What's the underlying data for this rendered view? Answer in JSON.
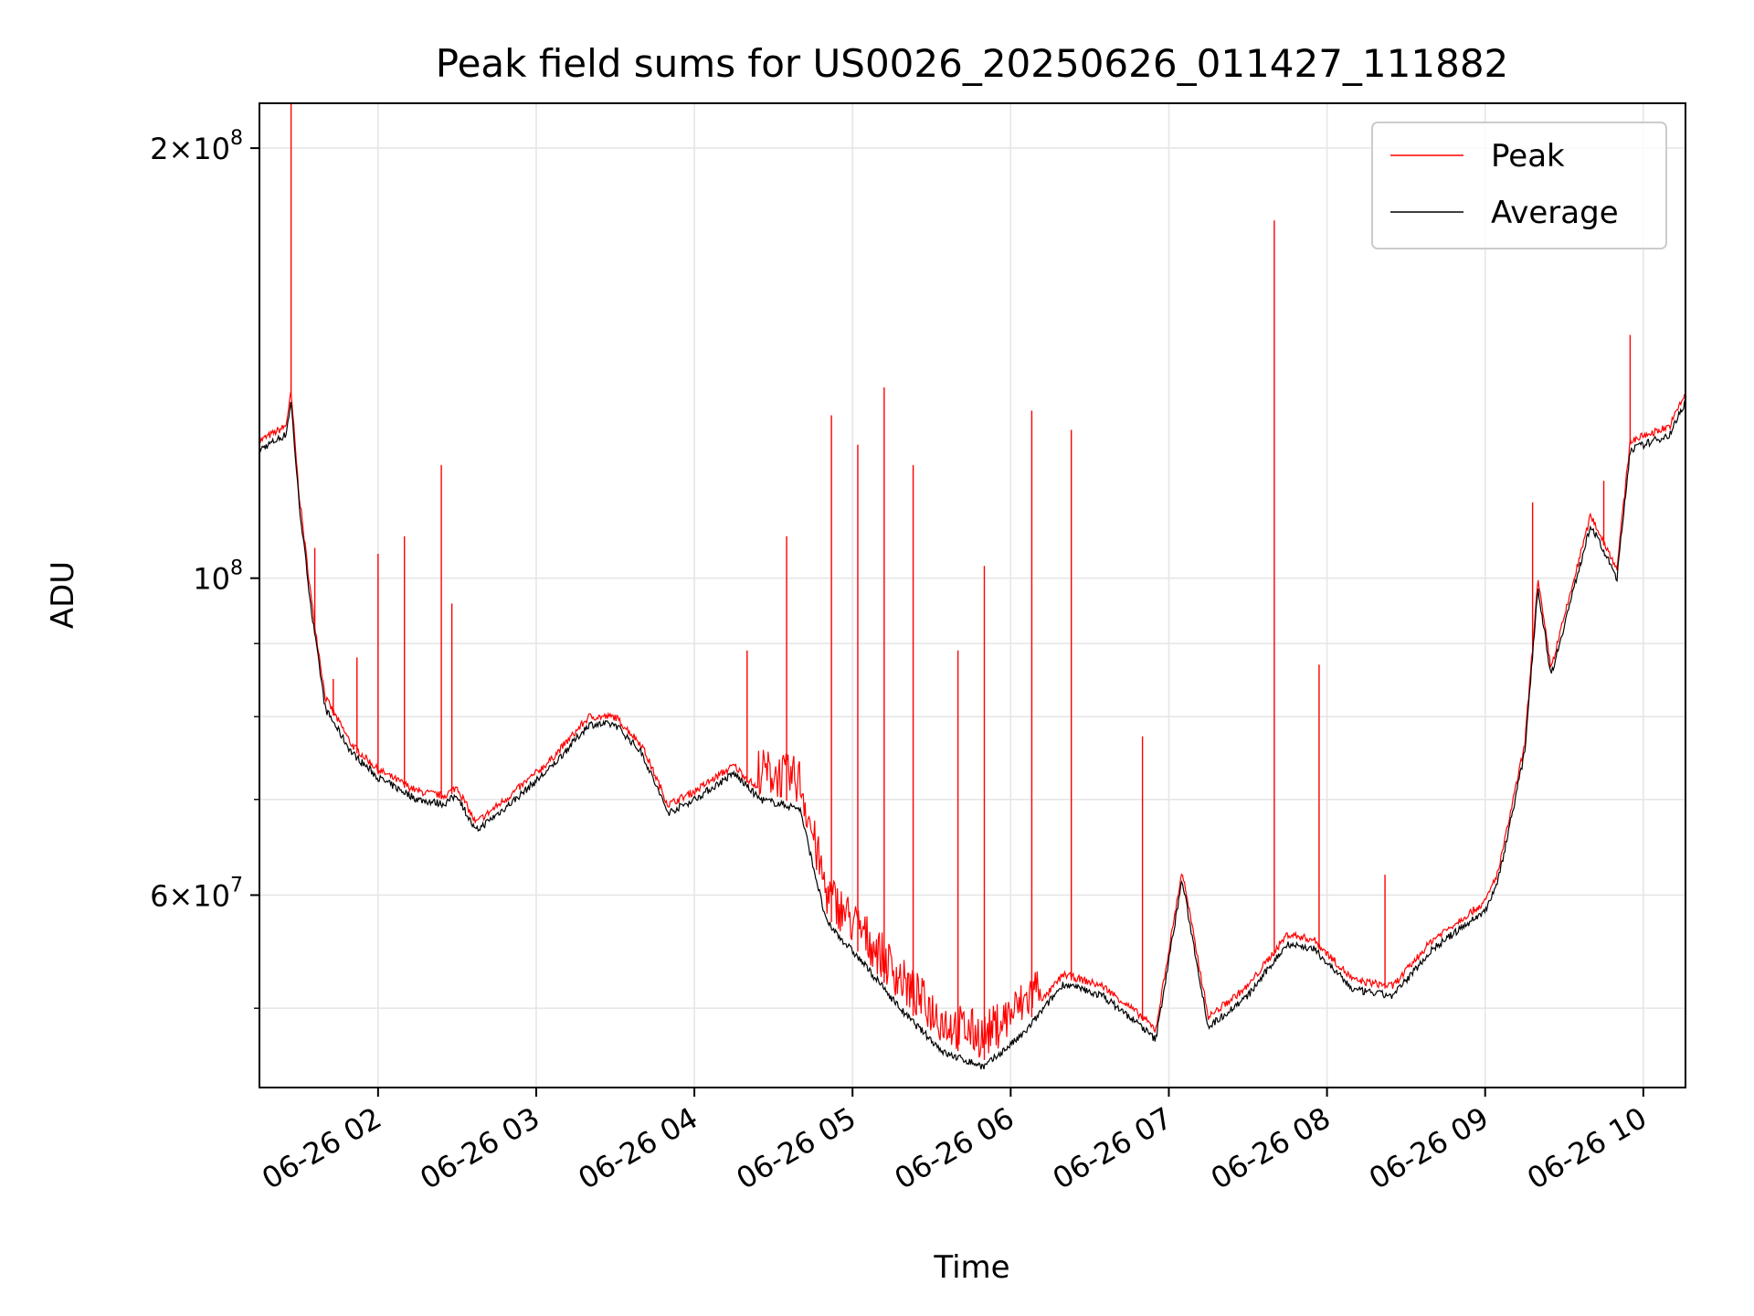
{
  "chart_data": {
    "type": "line",
    "title": "Peak field sums for US0026_20250626_011427_111882",
    "xlabel": "Time",
    "ylabel": "ADU",
    "x_tick_labels": [
      "06-26 02",
      "06-26 03",
      "06-26 04",
      "06-26 05",
      "06-26 06",
      "06-26 07",
      "06-26 08",
      "06-26 09",
      "06-26 10"
    ],
    "x_ticks": [
      "2025-06-26 02:00",
      "2025-06-26 03:00",
      "2025-06-26 04:00",
      "2025-06-26 05:00",
      "2025-06-26 06:00",
      "2025-06-26 07:00",
      "2025-06-26 08:00",
      "2025-06-26 09:00",
      "2025-06-26 10:00"
    ],
    "xlim": [
      "2025-06-26 01:15",
      "2025-06-26 10:16"
    ],
    "yscale": "log",
    "ylim": [
      44000000,
      215000000
    ],
    "y_major_ticks": [
      {
        "value": 200000000,
        "base": "2×10",
        "exp": "8"
      },
      {
        "value": 100000000,
        "base": "10",
        "exp": "8"
      },
      {
        "value": 60000000,
        "base": "6×10",
        "exp": "7"
      }
    ],
    "y_minor_ticks": [
      50000000,
      70000000,
      80000000,
      90000000
    ],
    "grid": true,
    "legend_position": "top-right",
    "series": [
      {
        "name": "Peak",
        "color": "#ff0000",
        "baseline": [
          [
            "2025-06-26 01:15",
            124000000
          ],
          [
            "2025-06-26 01:25",
            127000000
          ],
          [
            "2025-06-26 01:27",
            134000000
          ],
          [
            "2025-06-26 01:30",
            114000000
          ],
          [
            "2025-06-26 01:35",
            95000000
          ],
          [
            "2025-06-26 01:40",
            82000000
          ],
          [
            "2025-06-26 01:50",
            76000000
          ],
          [
            "2025-06-26 02:00",
            73000000
          ],
          [
            "2025-06-26 02:15",
            70500000
          ],
          [
            "2025-06-26 02:25",
            70000000
          ],
          [
            "2025-06-26 02:30",
            71000000
          ],
          [
            "2025-06-26 02:37",
            67000000
          ],
          [
            "2025-06-26 02:50",
            70000000
          ],
          [
            "2025-06-26 03:05",
            74000000
          ],
          [
            "2025-06-26 03:20",
            79500000
          ],
          [
            "2025-06-26 03:30",
            79500000
          ],
          [
            "2025-06-26 03:40",
            76000000
          ],
          [
            "2025-06-26 03:50",
            69000000
          ],
          [
            "2025-06-26 04:00",
            70500000
          ],
          [
            "2025-06-26 04:15",
            73500000
          ],
          [
            "2025-06-26 04:25",
            70500000
          ],
          [
            "2025-06-26 04:40",
            69500000
          ],
          [
            "2025-06-26 04:50",
            58000000
          ],
          [
            "2025-06-26 05:05",
            54000000
          ],
          [
            "2025-06-26 05:20",
            50000000
          ],
          [
            "2025-06-26 05:35",
            47000000
          ],
          [
            "2025-06-26 05:50",
            46000000
          ],
          [
            "2025-06-26 06:05",
            48500000
          ],
          [
            "2025-06-26 06:20",
            52500000
          ],
          [
            "2025-06-26 06:35",
            51500000
          ],
          [
            "2025-06-26 06:50",
            49000000
          ],
          [
            "2025-06-26 06:55",
            48000000
          ],
          [
            "2025-06-26 07:05",
            62000000
          ],
          [
            "2025-06-26 07:15",
            49000000
          ],
          [
            "2025-06-26 07:30",
            51500000
          ],
          [
            "2025-06-26 07:45",
            56000000
          ],
          [
            "2025-06-26 07:55",
            55500000
          ],
          [
            "2025-06-26 08:10",
            52000000
          ],
          [
            "2025-06-26 08:25",
            51500000
          ],
          [
            "2025-06-26 08:40",
            55500000
          ],
          [
            "2025-06-26 09:00",
            59000000
          ],
          [
            "2025-06-26 09:05",
            62000000
          ],
          [
            "2025-06-26 09:15",
            76000000
          ],
          [
            "2025-06-26 09:20",
            99000000
          ],
          [
            "2025-06-26 09:25",
            86000000
          ],
          [
            "2025-06-26 09:40",
            110000000
          ],
          [
            "2025-06-26 09:50",
            101000000
          ],
          [
            "2025-06-26 09:55",
            124000000
          ],
          [
            "2025-06-26 10:10",
            127000000
          ],
          [
            "2025-06-26 10:16",
            134000000
          ]
        ],
        "spikes": [
          [
            "2025-06-26 01:27",
            215000000
          ],
          [
            "2025-06-26 01:36",
            105000000
          ],
          [
            "2025-06-26 01:43",
            85000000
          ],
          [
            "2025-06-26 01:52",
            88000000
          ],
          [
            "2025-06-26 02:00",
            104000000
          ],
          [
            "2025-06-26 02:10",
            107000000
          ],
          [
            "2025-06-26 02:24",
            120000000
          ],
          [
            "2025-06-26 02:28",
            96000000
          ],
          [
            "2025-06-26 04:20",
            89000000
          ],
          [
            "2025-06-26 04:35",
            107000000
          ],
          [
            "2025-06-26 04:52",
            130000000
          ],
          [
            "2025-06-26 05:02",
            124000000
          ],
          [
            "2025-06-26 05:12",
            136000000
          ],
          [
            "2025-06-26 05:23",
            120000000
          ],
          [
            "2025-06-26 05:40",
            89000000
          ],
          [
            "2025-06-26 05:50",
            102000000
          ],
          [
            "2025-06-26 06:08",
            131000000
          ],
          [
            "2025-06-26 06:23",
            127000000
          ],
          [
            "2025-06-26 06:50",
            77500000
          ],
          [
            "2025-06-26 07:40",
            178000000
          ],
          [
            "2025-06-26 07:57",
            87000000
          ],
          [
            "2025-06-26 08:22",
            62000000
          ],
          [
            "2025-06-26 09:18",
            113000000
          ],
          [
            "2025-06-26 09:45",
            117000000
          ],
          [
            "2025-06-26 09:55",
            148000000
          ]
        ]
      },
      {
        "name": "Average",
        "color": "#000000",
        "values": [
          [
            "2025-06-26 01:15",
            123000000
          ],
          [
            "2025-06-26 01:25",
            126000000
          ],
          [
            "2025-06-26 01:27",
            133000000
          ],
          [
            "2025-06-26 01:30",
            113000000
          ],
          [
            "2025-06-26 01:35",
            94000000
          ],
          [
            "2025-06-26 01:40",
            81000000
          ],
          [
            "2025-06-26 01:50",
            75500000
          ],
          [
            "2025-06-26 02:00",
            72500000
          ],
          [
            "2025-06-26 02:15",
            70000000
          ],
          [
            "2025-06-26 02:25",
            69500000
          ],
          [
            "2025-06-26 02:30",
            70500000
          ],
          [
            "2025-06-26 02:37",
            66500000
          ],
          [
            "2025-06-26 02:50",
            69500000
          ],
          [
            "2025-06-26 03:05",
            73500000
          ],
          [
            "2025-06-26 03:20",
            79000000
          ],
          [
            "2025-06-26 03:30",
            79000000
          ],
          [
            "2025-06-26 03:40",
            75500000
          ],
          [
            "2025-06-26 03:50",
            68500000
          ],
          [
            "2025-06-26 04:00",
            70000000
          ],
          [
            "2025-06-26 04:15",
            73000000
          ],
          [
            "2025-06-26 04:25",
            70000000
          ],
          [
            "2025-06-26 04:40",
            69000000
          ],
          [
            "2025-06-26 04:50",
            57500000
          ],
          [
            "2025-06-26 05:05",
            53500000
          ],
          [
            "2025-06-26 05:20",
            49500000
          ],
          [
            "2025-06-26 05:35",
            46500000
          ],
          [
            "2025-06-26 05:50",
            45500000
          ],
          [
            "2025-06-26 06:05",
            48000000
          ],
          [
            "2025-06-26 06:20",
            52000000
          ],
          [
            "2025-06-26 06:35",
            51000000
          ],
          [
            "2025-06-26 06:50",
            48500000
          ],
          [
            "2025-06-26 06:55",
            47500000
          ],
          [
            "2025-06-26 07:05",
            61500000
          ],
          [
            "2025-06-26 07:15",
            48500000
          ],
          [
            "2025-06-26 07:30",
            51000000
          ],
          [
            "2025-06-26 07:45",
            55500000
          ],
          [
            "2025-06-26 07:55",
            55000000
          ],
          [
            "2025-06-26 08:10",
            51500000
          ],
          [
            "2025-06-26 08:25",
            51000000
          ],
          [
            "2025-06-26 08:40",
            55000000
          ],
          [
            "2025-06-26 09:00",
            58500000
          ],
          [
            "2025-06-26 09:05",
            61500000
          ],
          [
            "2025-06-26 09:15",
            75500000
          ],
          [
            "2025-06-26 09:20",
            98500000
          ],
          [
            "2025-06-26 09:25",
            85500000
          ],
          [
            "2025-06-26 09:40",
            109000000
          ],
          [
            "2025-06-26 09:50",
            100000000
          ],
          [
            "2025-06-26 09:55",
            123000000
          ],
          [
            "2025-06-26 10:10",
            126000000
          ],
          [
            "2025-06-26 10:16",
            133000000
          ]
        ]
      }
    ]
  }
}
